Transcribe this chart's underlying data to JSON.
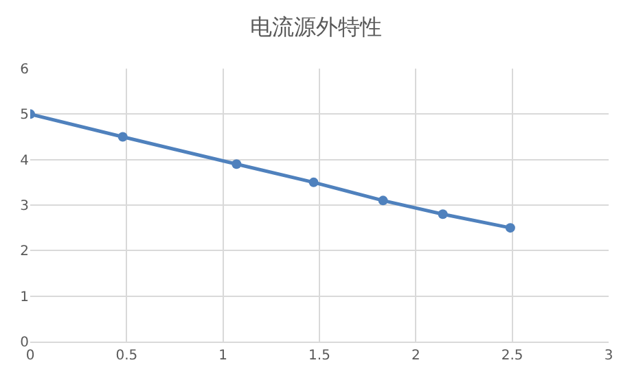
{
  "chart_data": {
    "type": "line",
    "title": "电流源外特性",
    "x": [
      0,
      0.48,
      1.07,
      1.47,
      1.83,
      2.14,
      2.49
    ],
    "series": [
      {
        "color": "#4f81bd",
        "values": [
          5.0,
          4.5,
          3.9,
          3.5,
          3.1,
          2.8,
          2.5
        ]
      }
    ],
    "xlim": [
      0,
      3
    ],
    "xticks": [
      0,
      0.5,
      1,
      1.5,
      2,
      2.5,
      3
    ],
    "ylim": [
      0,
      6
    ],
    "yticks": [
      0,
      1,
      2,
      3,
      4,
      5,
      6
    ],
    "grid": true,
    "marker": "circle",
    "line_style": "solid"
  }
}
